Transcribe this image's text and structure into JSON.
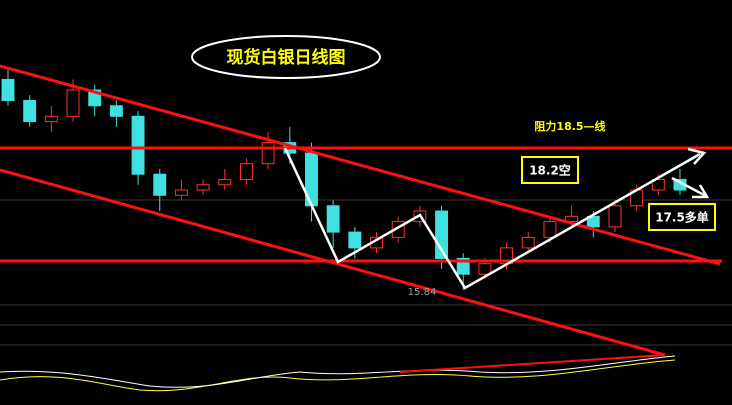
{
  "chart_data": {
    "type": "candlestick",
    "title": "现货白银日线图",
    "annotations": [
      "阻力18.5—线",
      "18.2空",
      "17.5多单",
      "15.84"
    ],
    "ylim": [
      14.85,
      21.31
    ],
    "up_color": "#ff3030",
    "down_color": "#40e0e0",
    "open": [
      19.8,
      19.4,
      19.0,
      19.1,
      19.6,
      19.3,
      19.1,
      18.0,
      17.6,
      17.7,
      17.8,
      17.9,
      18.2,
      18.6,
      18.4,
      17.4,
      16.9,
      16.6,
      16.8,
      17.1,
      17.3,
      16.4,
      16.1,
      16.3,
      16.6,
      16.8,
      17.1,
      17.2,
      17.0,
      17.4,
      17.7,
      17.9
    ],
    "close": [
      19.4,
      19.0,
      19.1,
      19.6,
      19.3,
      19.1,
      18.0,
      17.6,
      17.7,
      17.8,
      17.9,
      18.2,
      18.6,
      18.4,
      17.4,
      16.9,
      16.6,
      16.8,
      17.1,
      17.3,
      16.4,
      16.1,
      16.3,
      16.6,
      16.8,
      17.1,
      17.2,
      17.0,
      17.4,
      17.7,
      17.9,
      17.7
    ],
    "high": [
      20.0,
      19.5,
      19.3,
      19.8,
      19.7,
      19.4,
      19.2,
      18.1,
      17.9,
      17.9,
      18.1,
      18.3,
      18.8,
      18.9,
      18.6,
      17.5,
      17.0,
      16.9,
      17.2,
      17.4,
      17.4,
      16.5,
      16.4,
      16.7,
      16.9,
      17.2,
      17.4,
      17.3,
      17.5,
      17.8,
      18.0,
      18.1
    ],
    "low": [
      19.3,
      18.9,
      18.8,
      19.0,
      19.1,
      18.9,
      17.8,
      17.3,
      17.5,
      17.6,
      17.7,
      17.8,
      18.1,
      18.2,
      17.1,
      16.6,
      16.4,
      16.5,
      16.7,
      17.0,
      16.2,
      15.8,
      16.0,
      16.2,
      16.5,
      16.7,
      17.0,
      16.8,
      16.9,
      17.3,
      17.6,
      17.6
    ]
  }
}
